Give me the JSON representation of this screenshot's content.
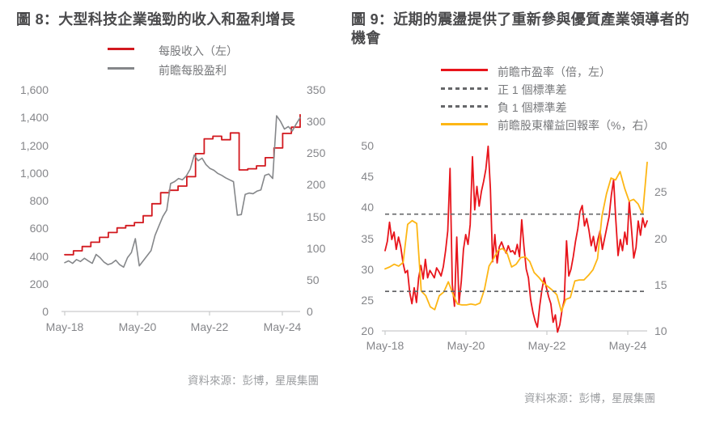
{
  "figure8": {
    "title": "圖 8：大型科技企業強勁的收入和盈利增長",
    "source": "資料來源：彭博，星展集團",
    "legend": [
      {
        "label": "每股收入（左）",
        "color": "#d2191f",
        "line_style": "solid"
      },
      {
        "label": "前瞻每股盈利",
        "color": "#85878a",
        "line_style": "solid"
      }
    ]
  },
  "figure9": {
    "title": "圖 9：近期的震盪提供了重新參與優質產業領導者的機會",
    "source": "資料來源：彭博，星展集團",
    "legend": [
      {
        "label": "前瞻市盈率（倍，左）",
        "color": "#e8141b",
        "line_style": "solid"
      },
      {
        "label": "正 1 個標準差",
        "color": "#66676a",
        "line_style": "dashed"
      },
      {
        "label": "負 1 個標準差",
        "color": "#66676a",
        "line_style": "dashed"
      },
      {
        "label": "前瞻股東權益回報率（%，右）",
        "color": "#fdb614",
        "line_style": "solid"
      }
    ]
  },
  "chart_data": [
    {
      "type": "line",
      "title": "圖 8：大型科技企業強勁的收入和盈利增長",
      "x_tick_labels": [
        "May-18",
        "May-20",
        "May-22",
        "May-24"
      ],
      "left_axis": {
        "min": 0,
        "max": 1600,
        "tick_labels": [
          "0",
          "200",
          "400",
          "600",
          "800",
          "1,000",
          "1,200",
          "1,400",
          "1,600"
        ]
      },
      "right_axis": {
        "min": 0,
        "max": 350,
        "tick_labels": [
          "0",
          "50",
          "100",
          "150",
          "200",
          "250",
          "300",
          "350"
        ]
      },
      "grid": false,
      "legend_position": "top",
      "series": [
        {
          "name": "每股收入（左）",
          "axis": "left",
          "color": "#d2191f",
          "style": "step",
          "width": 1.8,
          "values": [
            410,
            438,
            469,
            500,
            535,
            570,
            603,
            620,
            642,
            691,
            778,
            857,
            875,
            905,
            973,
            1139,
            1246,
            1265,
            1240,
            1289,
            1022,
            1030,
            1051,
            1110,
            1180,
            1285,
            1330,
            1420
          ]
        },
        {
          "name": "前瞻每股盈利",
          "axis": "right",
          "color": "#85878a",
          "style": "line",
          "width": 1.6,
          "values": [
            77,
            80,
            76,
            82,
            79,
            84,
            80,
            76,
            90,
            85,
            78,
            74,
            76,
            81,
            74,
            70,
            85,
            93,
            115,
            72,
            80,
            88,
            96,
            120,
            135,
            150,
            160,
            202,
            205,
            210,
            208,
            214,
            225,
            247,
            238,
            242,
            232,
            226,
            223,
            218,
            215,
            211,
            208,
            205,
            152,
            153,
            185,
            187,
            186,
            190,
            192,
            215,
            217,
            210,
            309,
            300,
            288,
            292,
            285,
            296,
            306
          ]
        }
      ]
    },
    {
      "type": "line",
      "title": "圖 9：近期的震盪提供了重新參與優質產業領導者的機會",
      "x_tick_labels": [
        "May-18",
        "May-20",
        "May-22",
        "May-24"
      ],
      "left_axis": {
        "min": 20,
        "max": 50,
        "tick_labels": [
          "20",
          "25",
          "30",
          "35",
          "40",
          "45",
          "50"
        ]
      },
      "right_axis": {
        "min": 10,
        "max": 30,
        "tick_labels": [
          "10",
          "15",
          "20",
          "25",
          "30"
        ]
      },
      "grid": false,
      "legend_position": "top",
      "series": [
        {
          "name": "前瞻市盈率（倍，左）",
          "axis": "left",
          "color": "#e8141b",
          "style": "line",
          "width": 1.8,
          "values": [
            33.0,
            34.5,
            37.6,
            34.8,
            36.0,
            33.2,
            35.2,
            33.6,
            31.0,
            29.4,
            29.8,
            26.2,
            24.4,
            27.0,
            24.6,
            28.6,
            30.6,
            28.4,
            31.6,
            28.6,
            29.8,
            29.2,
            28.6,
            30.2,
            29.6,
            28.9,
            30.4,
            33.0,
            36.2,
            46.3,
            27.5,
            24.0,
            35.2,
            24.5,
            28.0,
            33.2,
            35.6,
            34.0,
            37.2,
            48.2,
            39.6,
            43.4,
            40.2,
            42.6,
            44.2,
            46.2,
            49.9,
            43.0,
            31.2,
            35.6,
            31.0,
            33.6,
            34.4,
            33.4,
            32.6,
            33.8,
            32.8,
            33.0,
            32.4,
            34.0,
            32.0,
            38.0,
            33.6,
            30.0,
            28.6,
            25.0,
            23.0,
            21.6,
            20.6,
            24.0,
            26.6,
            28.6,
            27.0,
            25.5,
            24.4,
            21.4,
            22.6,
            19.8,
            21.0,
            23.4,
            25.0,
            34.6,
            28.9,
            30.0,
            32.0,
            34.5,
            36.5,
            39.3,
            40.3,
            37.0,
            38.2,
            36.3,
            33.8,
            35.3,
            32.9,
            34.8,
            36.2,
            33.2,
            35.0,
            36.8,
            38.5,
            42.0,
            44.5,
            38.0,
            32.2,
            34.8,
            33.0,
            36.0,
            34.0,
            41.0,
            36.5,
            31.8,
            33.5,
            37.8,
            35.5,
            38.3,
            36.8,
            37.8
          ]
        },
        {
          "name": "前瞻股東權益回報率（%，右）",
          "axis": "right",
          "color": "#fdb614",
          "style": "line",
          "width": 1.8,
          "values": [
            16.7,
            16.9,
            17.2,
            17.0,
            17.4,
            21.5,
            21.9,
            21.6,
            14.3,
            13.8,
            12.6,
            12.3,
            13.8,
            14.2,
            15.3,
            14.0,
            12.9,
            12.8,
            12.8,
            12.9,
            12.8,
            13.0,
            14.5,
            17.0,
            17.8,
            18.7,
            18.9,
            18.4,
            16.9,
            17.2,
            17.9,
            18.0,
            17.5,
            16.3,
            15.8,
            15.2,
            14.8,
            14.4,
            13.9,
            12.1,
            13.4,
            13.6,
            15.4,
            15.5,
            15.5,
            16.0,
            16.6,
            17.8,
            22.4,
            24.8,
            26.5,
            26.3,
            27.2,
            25.4,
            24.0,
            24.2,
            23.7,
            22.6,
            28.2
          ]
        }
      ],
      "reference_lines": [
        {
          "name": "正 1 個標準差",
          "axis": "left",
          "value": 38.9,
          "color": "#66676a",
          "line_style": "dashed"
        },
        {
          "name": "負 1 個標準差",
          "axis": "left",
          "value": 26.4,
          "color": "#66676a",
          "line_style": "dashed"
        }
      ]
    }
  ]
}
